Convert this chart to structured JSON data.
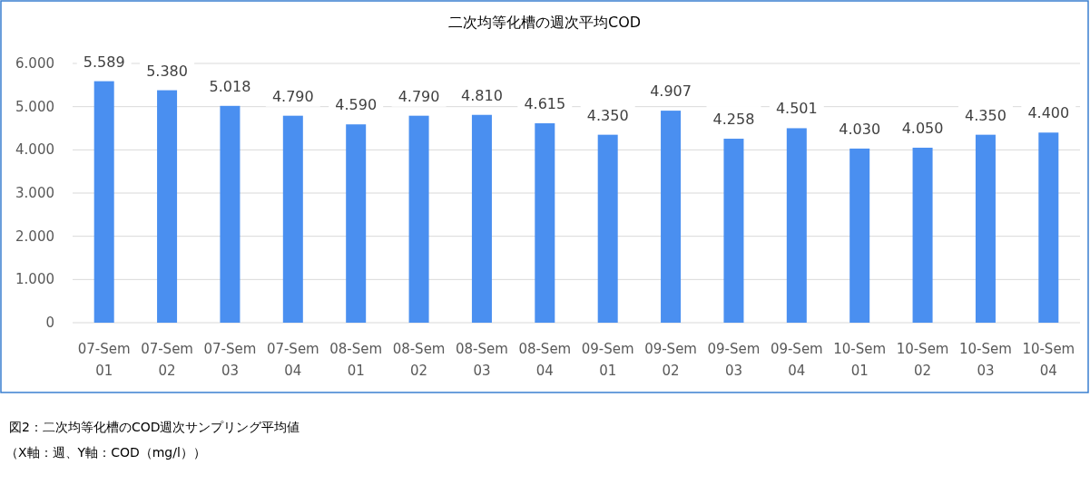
{
  "chart_data": {
    "type": "bar",
    "title": "二次均等化槽の週次平均COD",
    "categories": [
      "07-Sem 01",
      "07-Sem 02",
      "07-Sem 03",
      "07-Sem 04",
      "08-Sem 01",
      "08-Sem 02",
      "08-Sem 03",
      "08-Sem 04",
      "09-Sem 01",
      "09-Sem 02",
      "09-Sem 03",
      "09-Sem 04",
      "10-Sem 01",
      "10-Sem 02",
      "10-Sem 03",
      "10-Sem 04"
    ],
    "values": [
      5589,
      5380,
      5018,
      4790,
      4590,
      4790,
      4810,
      4615,
      4350,
      4907,
      4258,
      4501,
      4030,
      4050,
      4350,
      4400
    ],
    "value_labels": [
      "5.589",
      "5.380",
      "5.018",
      "4.790",
      "4.590",
      "4.790",
      "4.810",
      "4.615",
      "4.350",
      "4.907",
      "4.258",
      "4.501",
      "4.030",
      "4.050",
      "4.350",
      "4.400"
    ],
    "color": "#4a8ff0",
    "ylim": [
      0,
      6000
    ],
    "yticks": [
      0,
      {
        "value": 1000,
        "label": "1.000"
      },
      {
        "value": 2000,
        "label": "2.000"
      },
      {
        "value": 3000,
        "label": "3.000"
      },
      {
        "value": 4000,
        "label": "4.000"
      },
      {
        "value": 5000,
        "label": "5.000"
      },
      {
        "value": 6000,
        "label": "6.000"
      }
    ],
    "grid": "y",
    "annotations": [
      "図2：二次均等化槽のCOD週次サンプリング平均値",
      "（X軸：週、Y軸：COD（mg/l））"
    ]
  }
}
